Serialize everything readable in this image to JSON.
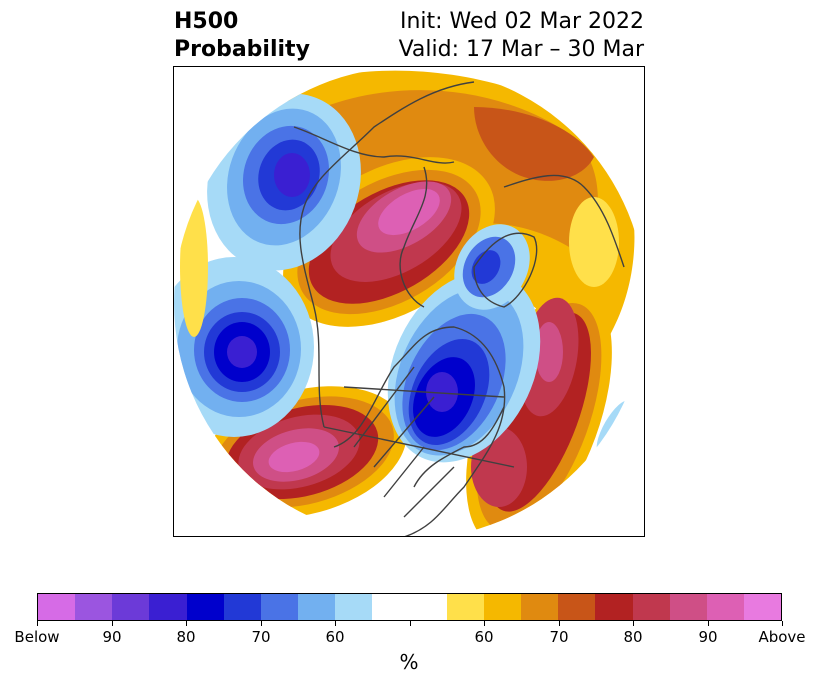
{
  "title": {
    "left_line1": "H500",
    "left_line2": "Probability",
    "right_line1": "Init: Wed 02 Mar 2022",
    "right_line2": "Valid: 17 Mar – 30 Mar"
  },
  "colorbar": {
    "colors": [
      "#d66be6",
      "#9b55e0",
      "#6c3ad8",
      "#3a1fd2",
      "#0000cc",
      "#2239d6",
      "#4a73e6",
      "#72b0f0",
      "#a6daf7",
      "#ffffff",
      "#ffffff",
      "#ffe04a",
      "#f5b800",
      "#e08a10",
      "#c85518",
      "#b22222",
      "#c0384e",
      "#cf4f86",
      "#dd60b4",
      "#e87ae0"
    ],
    "tick_labels": [
      "Below",
      "90",
      "80",
      "70",
      "60",
      "",
      "60",
      "70",
      "80",
      "90",
      "Above"
    ],
    "unit_label": "%"
  },
  "map": {
    "projection": "north-polar-stereographic",
    "anomaly_regions": [
      {
        "name": "gulf-of-alaska-low",
        "category": "below",
        "level": 90
      },
      {
        "name": "north-pacific-low",
        "category": "below",
        "level": 90
      },
      {
        "name": "hudson-bay-low",
        "category": "below",
        "level": 90
      },
      {
        "name": "greenland-low",
        "category": "below",
        "level": 80
      },
      {
        "name": "siberia-high",
        "category": "above",
        "level": 90
      },
      {
        "name": "western-us-high",
        "category": "above",
        "level": 90
      },
      {
        "name": "north-atlantic-high",
        "category": "above",
        "level": 80
      },
      {
        "name": "europe-high",
        "category": "above",
        "level": 60
      }
    ]
  }
}
